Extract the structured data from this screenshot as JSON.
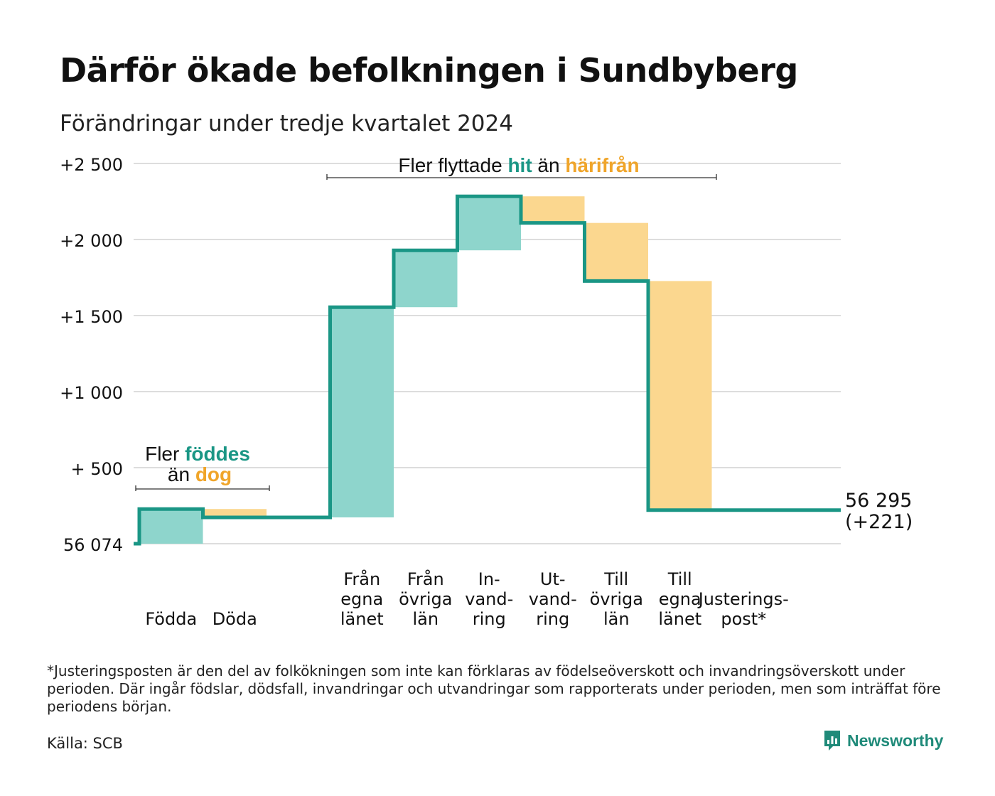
{
  "title": "Därför ökade befolkningen i Sundbyberg",
  "subtitle": "Förändringar under tredje kvartalet 2024",
  "footnote": "*Justeringsposten är den del av folkökningen som inte kan förklaras av födelseöverskott och invandringsöverskott under perioden. Där ingår födslar, dödsfall, invandringar och utvandringar som rapporterats under perioden, men som inträffat före periodens början.",
  "source": "Källa: SCB",
  "brand": "Newsworthy",
  "colors": {
    "increase_fill": "#8ed5cc",
    "decrease_fill": "#fbd78f",
    "line": "#1a9685",
    "orange_text": "#f0a52a",
    "grid": "#dddddd"
  },
  "annotations": {
    "births": {
      "line1": "Fler ",
      "accent1": "föddes",
      "line2_prefix": "än ",
      "accent2": "dog"
    },
    "migration": {
      "prefix": "Fler flyttade ",
      "accent1": "hit",
      "middle": " än ",
      "accent2": "härifrån"
    }
  },
  "end_label": {
    "value": "56 295",
    "change": "(+221)"
  },
  "chart_data": {
    "type": "waterfall",
    "title": "Därför ökade befolkningen i Sundbyberg",
    "subtitle": "Förändringar under tredje kvartalet 2024",
    "base": 56074,
    "ylim": [
      0,
      2500
    ],
    "yticks": [
      0,
      500,
      1000,
      1500,
      2000,
      2500
    ],
    "ytick_labels": [
      "56 074",
      "+  500",
      "+1 000",
      "+1 500",
      "+2 000",
      "+2 500"
    ],
    "grid": true,
    "steps": [
      {
        "label": [
          "Födda"
        ],
        "change": 228
      },
      {
        "label": [
          "Döda"
        ],
        "change": -55
      },
      {
        "label": [
          "Från",
          "egna",
          "länet"
        ],
        "change": 1382
      },
      {
        "label": [
          "Från",
          "övriga",
          "län"
        ],
        "change": 374
      },
      {
        "label": [
          "In-",
          "vand-",
          "ring"
        ],
        "change": 355
      },
      {
        "label": [
          "Ut-",
          "vand-",
          "ring"
        ],
        "change": -175
      },
      {
        "label": [
          "Till",
          "övriga",
          "län"
        ],
        "change": -382
      },
      {
        "label": [
          "Till",
          "egna",
          "länet"
        ],
        "change": -1506
      },
      {
        "label": [
          "Justerings-",
          "post*"
        ],
        "change": 0
      }
    ],
    "end_value": 56295,
    "end_change": 221
  }
}
